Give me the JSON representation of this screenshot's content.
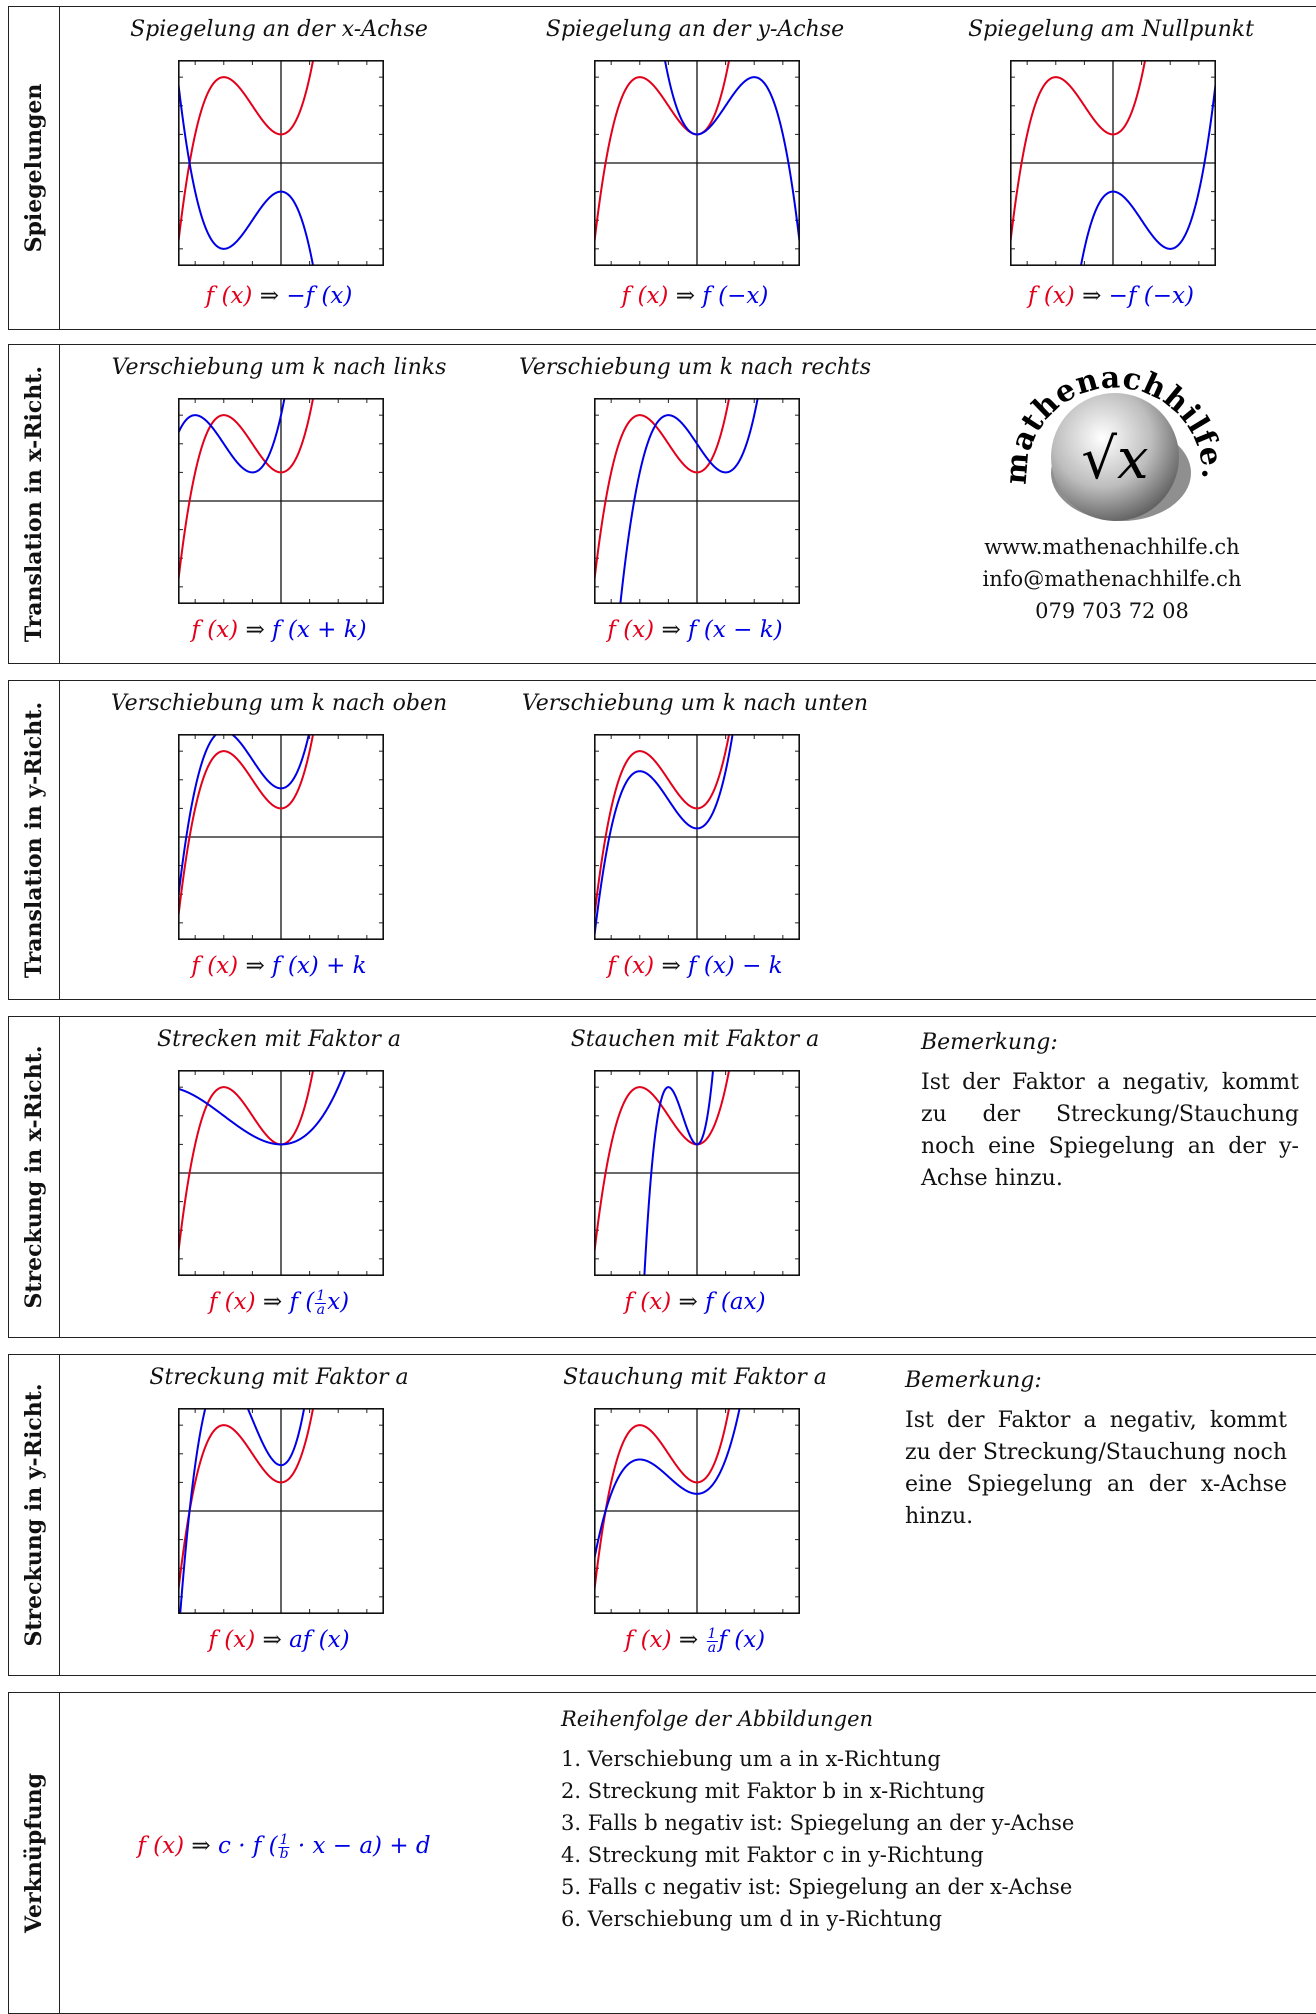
{
  "sections": [
    {
      "label": "Spiegelungen",
      "plots": [
        {
          "title": "Spiegelung an der x-Achse",
          "red": "f (x)",
          "arrow": "⇒",
          "blue": "−f (x)"
        },
        {
          "title": "Spiegelung an der y-Achse",
          "red": "f (x)",
          "arrow": "⇒",
          "blue": "f (−x)"
        },
        {
          "title": "Spiegelung am Nullpunkt",
          "red": "f (x)",
          "arrow": "⇒",
          "blue": "−f (−x)"
        }
      ]
    },
    {
      "label": "Translation in x-Richt.",
      "plots": [
        {
          "title": "Verschiebung um k nach links",
          "red": "f (x)",
          "arrow": "⇒",
          "blue": "f (x + k)"
        },
        {
          "title": "Verschiebung um k nach rechts",
          "red": "f (x)",
          "arrow": "⇒",
          "blue": "f (x − k)"
        }
      ]
    },
    {
      "label": "Translation in y-Richt.",
      "plots": [
        {
          "title": "Verschiebung um k nach oben",
          "red": "f (x)",
          "arrow": "⇒",
          "blue": "f (x) + k"
        },
        {
          "title": "Verschiebung um k nach unten",
          "red": "f (x)",
          "arrow": "⇒",
          "blue": "f (x) − k"
        }
      ]
    },
    {
      "label": "Streckung in x-Richt.",
      "plots": [
        {
          "title": "Strecken mit Faktor a",
          "red": "f (x)",
          "arrow": "⇒",
          "blue_pre": "f (",
          "frac_num": "1",
          "frac_den": "a",
          "blue_post": "x)"
        },
        {
          "title": "Stauchen mit Faktor a",
          "red": "f (x)",
          "arrow": "⇒",
          "blue": "f (ax)"
        }
      ],
      "remark": {
        "heading": "Bemerkung:",
        "text": "Ist der Faktor a negativ, kommt zu der Streckung/Stauchung noch eine Spiegelung an der y-Achse hinzu."
      }
    },
    {
      "label": "Streckung in y-Richt.",
      "plots": [
        {
          "title": "Streckung mit Faktor a",
          "red": "f (x)",
          "arrow": "⇒",
          "blue": "af (x)"
        },
        {
          "title": "Stauchung mit Faktor a",
          "red": "f (x)",
          "arrow": "⇒",
          "frac_num": "1",
          "frac_den": "a",
          "blue_post": "f (x)"
        }
      ],
      "remark": {
        "heading": "Bemerkung:",
        "text": "Ist der Faktor a negativ, kommt zu der Streckung/Stauchung noch eine Spiegelung an der x-Achse hinzu."
      }
    },
    {
      "label": "Verknüpfung",
      "formula": {
        "red": "f (x)",
        "arrow": "⇒",
        "blue_pre": "c · f (",
        "frac_num": "1",
        "frac_den": "b",
        "blue_post": " · x − a) + d"
      },
      "list_heading": "Reihenfolge der Abbildungen",
      "list": [
        "1. Verschiebung um a in x-Richtung",
        "2. Streckung mit Faktor b in x-Richtung",
        "3. Falls b negativ ist: Spiegelung an der y-Achse",
        "4. Streckung mit Faktor c in y-Richtung",
        "5. Falls c negativ ist: Spiegelung an der x-Achse",
        "6. Verschiebung um d in y-Richtung"
      ]
    }
  ],
  "logo": {
    "text": "mathenachhilfe.ch",
    "symbol": "√x"
  },
  "contact": {
    "web": "www.mathenachhilfe.ch",
    "email": "info@mathenachhilfe.ch",
    "phone": "079 703 72 08"
  },
  "colors": {
    "original": "#e3001b",
    "transformed": "#0000e6"
  }
}
